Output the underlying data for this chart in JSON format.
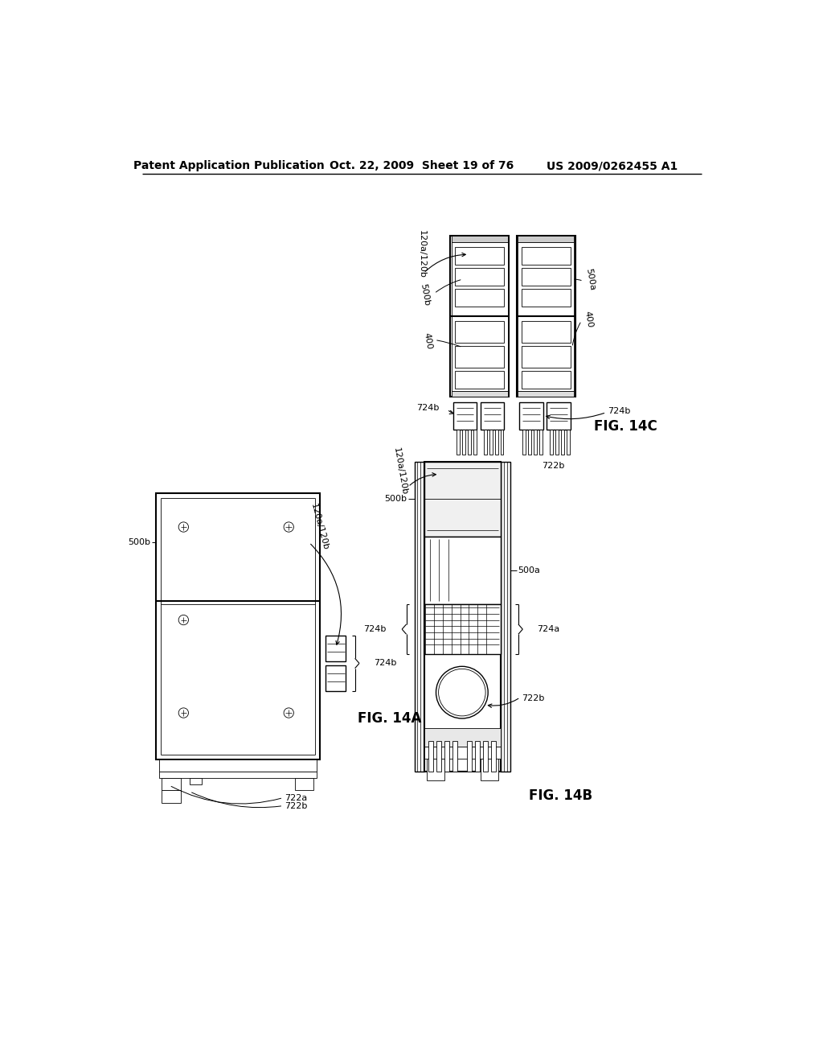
{
  "page_title_left": "Patent Application Publication",
  "page_title_center": "Oct. 22, 2009  Sheet 19 of 76",
  "page_title_right": "US 2009/0262455 A1",
  "fig_14a_label": "FIG. 14A",
  "fig_14b_label": "FIG. 14B",
  "fig_14c_label": "FIG. 14C",
  "bg_color": "#ffffff",
  "line_color": "#000000",
  "lw": 1.0,
  "lw_thin": 0.6,
  "lw_thick": 1.5
}
